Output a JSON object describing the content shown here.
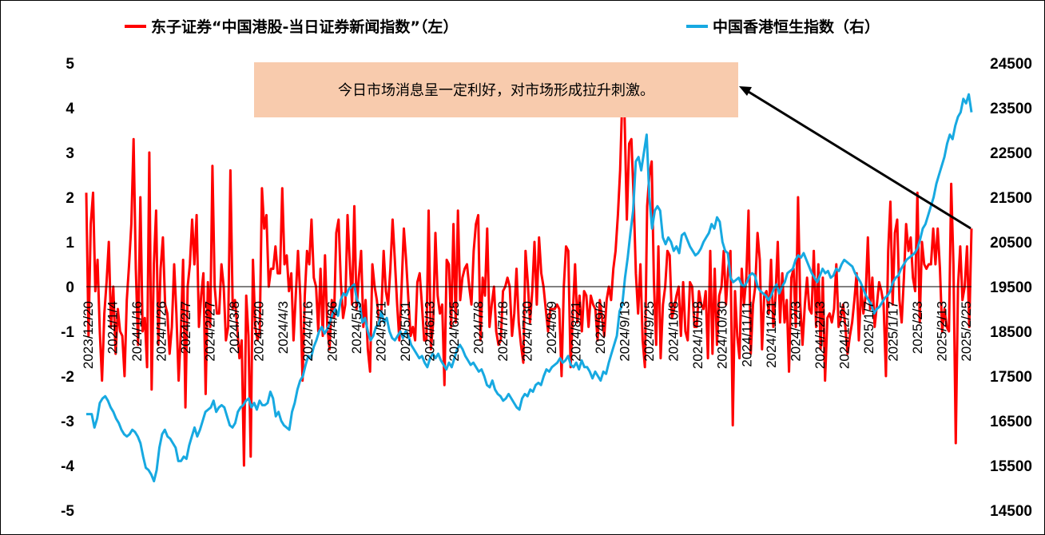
{
  "chart_data": {
    "type": "line",
    "annotation": "今日市场消息呈一定利好，对市场形成拉升刺激。",
    "legend_position": "top",
    "grid": false,
    "x_ticks": [
      "2023/12/20",
      "2024/1/4",
      "2024/1/16",
      "2024/1/26",
      "2024/2/7",
      "2024/2/27",
      "2024/3/8",
      "2024/3/20",
      "2024/4/3",
      "2024/4/16",
      "2024/4/26",
      "2024/5/9",
      "2024/5/21",
      "2024/5/31",
      "2024/6/13",
      "2024/6/25",
      "2024/7/8",
      "2024/7/18",
      "2024/7/30",
      "2024/8/9",
      "2024/8/21",
      "2024/9/2",
      "2024/9/13",
      "2024/9/25",
      "2024/10/8",
      "2024/10/18",
      "2024/10/30",
      "2024/11/11",
      "2024/11/21",
      "2024/12/3",
      "2024/12/13",
      "2024/12/25",
      "2025/1/7",
      "2025/1/17",
      "2025/2/3",
      "2025/2/13",
      "2025/2/25"
    ],
    "series": [
      {
        "name": "东子证券“中国港股-当日证券新闻指数”（左）",
        "axis": "left",
        "color": "#ff0000",
        "ylim": [
          -5,
          5
        ],
        "y_ticks": [
          5,
          4,
          3,
          2,
          1,
          0,
          -1,
          -2,
          -3,
          -4,
          -5
        ],
        "values": [
          2.1,
          -1.1,
          1.4,
          2.1,
          -0.1,
          0.6,
          -1.0,
          -2.1,
          -0.6,
          0.1,
          1.0,
          -0.9,
          0.0,
          -1.5,
          -0.5,
          -1.0,
          -1.1,
          -2.0,
          -0.3,
          0.5,
          1.4,
          3.3,
          0.4,
          -1.3,
          2.0,
          -1.0,
          -0.7,
          -1.8,
          3.0,
          -2.3,
          0.5,
          1.7,
          -1.3,
          0.4,
          1.1,
          -0.4,
          -0.6,
          -1.5,
          -0.9,
          0.5,
          -0.6,
          -2.1,
          -1.0,
          0.6,
          -2.7,
          0.0,
          0.5,
          1.5,
          0.5,
          1.6,
          -0.9,
          -0.2,
          0.3,
          -2.4,
          0.1,
          -0.9,
          2.7,
          0.0,
          -0.6,
          -0.6,
          0.5,
          0.0,
          -1.2,
          -0.9,
          2.6,
          -0.5,
          -0.3,
          -0.9,
          -1.6,
          -1.2,
          -4.0,
          -0.2,
          -1.1,
          -3.8,
          0.6,
          -0.9,
          -1.2,
          -1.0,
          2.2,
          1.3,
          1.6,
          0.0,
          0.4,
          0.4,
          0.9,
          0.3,
          0.3,
          2.2,
          0.5,
          0.7,
          -0.1,
          0.3,
          -1.2,
          -0.2,
          0.8,
          -0.2,
          -2.1,
          -0.2,
          0.8,
          0.5,
          1.5,
          0.2,
          0.0,
          -1.0,
          0.4,
          -1.1,
          0.7,
          -0.9,
          -1.4,
          -0.3,
          -0.7,
          1.2,
          1.5,
          0.1,
          -0.7,
          -0.4,
          1.6,
          0.5,
          -0.4,
          1.8,
          -0.5,
          0.2,
          0.8,
          -0.9,
          -0.3,
          -1.4,
          -1.9,
          0.5,
          0.0,
          -0.3,
          -0.8,
          -0.6,
          0.8,
          -0.1,
          -0.4,
          0.4,
          1.5,
          0.6,
          -0.4,
          -1.2,
          0.0,
          1.3,
          0.6,
          -0.3,
          -1.1,
          -0.9,
          -1.2,
          0.1,
          0.3,
          -0.4,
          -1.2,
          -1.2,
          1.7,
          -1.4,
          -0.8,
          1.2,
          -0.2,
          -0.6,
          -0.4,
          -2.2,
          0.6,
          0.5,
          -0.9,
          1.4,
          -0.8,
          1.7,
          -0.3,
          0.2,
          0.4,
          0.5,
          0.0,
          -0.4,
          0.8,
          1.4,
          1.6,
          -1.2,
          0.2,
          -0.2,
          1.3,
          -0.9,
          -0.4,
          0.0,
          -1.0,
          -1.3,
          -1.2,
          -0.1,
          0.0,
          0.2,
          0.0,
          -1.1,
          -0.6,
          0.4,
          -0.8,
          -1.3,
          -1.7,
          0.8,
          0.1,
          -0.8,
          -0.1,
          1.0,
          -0.4,
          1.1,
          0.3,
          0.0,
          -0.5,
          -1.0,
          -0.5,
          -0.5,
          -0.5,
          -0.4,
          -0.5,
          -2.0,
          0.0,
          0.9,
          0.8,
          -1.8,
          -0.6,
          0.5,
          -0.8,
          -0.2,
          -1.0,
          -0.1,
          -0.2,
          -0.9,
          -0.2,
          -0.4,
          -0.5,
          -1.2,
          -0.3,
          -0.7,
          -1.1,
          -0.3,
          0.0,
          -0.3,
          0.4,
          0.8,
          1.6,
          2.6,
          4.3,
          3.8,
          1.5,
          3.2,
          3.3,
          2.0,
          0.3,
          -0.6,
          0.5,
          -1.2,
          -1.8,
          1.8,
          2.5,
          2.8,
          0.1,
          -1.3,
          0.9,
          -1.6,
          -0.4,
          0.0,
          0.8,
          0.7,
          -0.7,
          -0.5,
          -0.2,
          0.0,
          -1.1,
          0.1,
          -1.0,
          -1.2,
          0.1,
          0.0,
          -0.9,
          -0.9,
          -0.1,
          -0.4,
          -0.5,
          -0.1,
          -1.6,
          0.8,
          -1.5,
          0.4,
          -1.3,
          -0.2,
          0.0,
          0.8,
          -0.4,
          0.4,
          0.8,
          -3.1,
          -0.1,
          -1.1,
          -1.6,
          0.4,
          -0.4,
          0.2,
          1.7,
          -1.5,
          -0.4,
          0.0,
          1.2,
          0.6,
          -1.4,
          -0.2,
          -0.1,
          -0.6,
          0.6,
          -0.9,
          -0.2,
          1.0,
          -0.8,
          0.3,
          -0.8,
          -0.3,
          -1.9,
          0.2,
          0.4,
          -0.9,
          2.0,
          -0.4,
          -1.3,
          -0.4,
          0.2,
          -0.5,
          -0.6,
          0.8,
          -0.9,
          0.5,
          -1.4,
          0.2,
          -2.1,
          -0.7,
          -0.6,
          -0.8,
          -0.5,
          0.5,
          -0.9,
          -0.7,
          -0.4,
          -0.9,
          -1.5,
          -1.1,
          -0.8,
          -0.3,
          0.3,
          -1.2,
          0.0,
          -0.6,
          -0.2,
          1.1,
          -0.5,
          0.2,
          -0.9,
          -0.4,
          0.1,
          -0.1,
          -0.4,
          -2.0,
          0.8,
          1.9,
          -0.4,
          1.2,
          1.5,
          -0.3,
          -0.8,
          0.2,
          1.4,
          0.8,
          1.1,
          0.2,
          -0.1,
          2.1,
          -0.8,
          1.0,
          0.5,
          0.4,
          0.5,
          0.5,
          1.3,
          0.5,
          1.3,
          0.4,
          -1.0,
          -0.5,
          -0.9,
          -1.0,
          2.3,
          0.5,
          -3.5,
          0.0,
          0.9,
          -0.3,
          0.0,
          0.9,
          -0.9,
          1.3
        ]
      },
      {
        "name": "中国香港恒生指数（右）",
        "axis": "right",
        "color": "#17a9e1",
        "ylim": [
          14500,
          24500
        ],
        "y_ticks": [
          24500,
          23500,
          22500,
          21500,
          20500,
          19500,
          18500,
          17500,
          16500,
          15500,
          14500
        ],
        "values": [
          16650,
          16650,
          16650,
          16350,
          16550,
          16900,
          17000,
          17050,
          16950,
          16800,
          16700,
          16550,
          16450,
          16300,
          16200,
          16150,
          16200,
          16300,
          16250,
          16150,
          16000,
          15700,
          15450,
          15400,
          15300,
          15150,
          15400,
          15900,
          16200,
          16300,
          16150,
          16100,
          16000,
          15900,
          15600,
          15600,
          15700,
          15650,
          15950,
          16150,
          16350,
          16150,
          16300,
          16500,
          16700,
          16750,
          16800,
          16950,
          16700,
          16800,
          16850,
          16800,
          16600,
          16400,
          16350,
          16450,
          16700,
          16800,
          16850,
          16950,
          17000,
          16800,
          16900,
          16750,
          16950,
          16850,
          16850,
          16900,
          17150,
          17000,
          16600,
          16700,
          16500,
          16400,
          16350,
          16300,
          16700,
          16900,
          17200,
          17400,
          17500,
          17750,
          17950,
          17900,
          18150,
          18300,
          18500,
          18600,
          18450,
          18550,
          18700,
          18900,
          19000,
          18850,
          19200,
          19350,
          19300,
          19450,
          19500,
          19550,
          19200,
          19100,
          18700,
          18800,
          18500,
          18300,
          18400,
          18600,
          18650,
          18950,
          18700,
          18800,
          18500,
          18350,
          18300,
          18400,
          18500,
          18350,
          18500,
          18400,
          18200,
          18100,
          18000,
          17900,
          17950,
          17800,
          17700,
          17900,
          18000,
          17900,
          18000,
          17850,
          17750,
          17650,
          17800,
          17700,
          17900,
          18100,
          18200,
          18100,
          17950,
          17850,
          17750,
          17800,
          17700,
          17600,
          17650,
          17500,
          17300,
          17250,
          17400,
          17200,
          17100,
          17050,
          16950,
          17000,
          17100,
          17000,
          16900,
          16800,
          16750,
          17000,
          17100,
          17050,
          17200,
          17150,
          17300,
          17350,
          17300,
          17500,
          17650,
          17600,
          17700,
          17750,
          17800,
          17900,
          17800,
          17850,
          17950,
          17750,
          17700,
          17800,
          17650,
          17850,
          17700,
          17700,
          17600,
          17450,
          17600,
          17500,
          17400,
          17600,
          17550,
          17800,
          18000,
          18200,
          18400,
          18950,
          19100,
          19700,
          20150,
          20700,
          21200,
          22300,
          22400,
          22100,
          22500,
          22900,
          21500,
          20800,
          21200,
          21300,
          21200,
          20600,
          20450,
          20600,
          20500,
          20300,
          20400,
          20250,
          20650,
          20700,
          20550,
          20400,
          20300,
          20200,
          20250,
          20350,
          20500,
          20600,
          20700,
          20900,
          20800,
          21050,
          20950,
          20500,
          20300,
          20250,
          19700,
          19600,
          19650,
          19700,
          19550,
          19500,
          19600,
          19750,
          19800,
          19750,
          19500,
          19400,
          19350,
          19300,
          19200,
          19300,
          19450,
          19550,
          19350,
          19500,
          19600,
          19800,
          19850,
          19900,
          20100,
          20200,
          20150,
          20250,
          20100,
          19950,
          19800,
          19700,
          19600,
          19750,
          19900,
          19800,
          19850,
          19700,
          19750,
          19900,
          19850,
          20000,
          20100,
          20050,
          20000,
          19950,
          19800,
          19700,
          19600,
          19450,
          19300,
          19200,
          19100,
          18900,
          19000,
          19050,
          19150,
          19250,
          19300,
          19400,
          19600,
          19700,
          19750,
          19900,
          20000,
          20100,
          20150,
          20200,
          20250,
          20350,
          20550,
          20800,
          20900,
          21100,
          21300,
          21500,
          21800,
          22000,
          22200,
          22400,
          22700,
          22900,
          22800,
          23100,
          23300,
          23400,
          23700,
          23600,
          23800,
          23400
        ]
      }
    ]
  }
}
